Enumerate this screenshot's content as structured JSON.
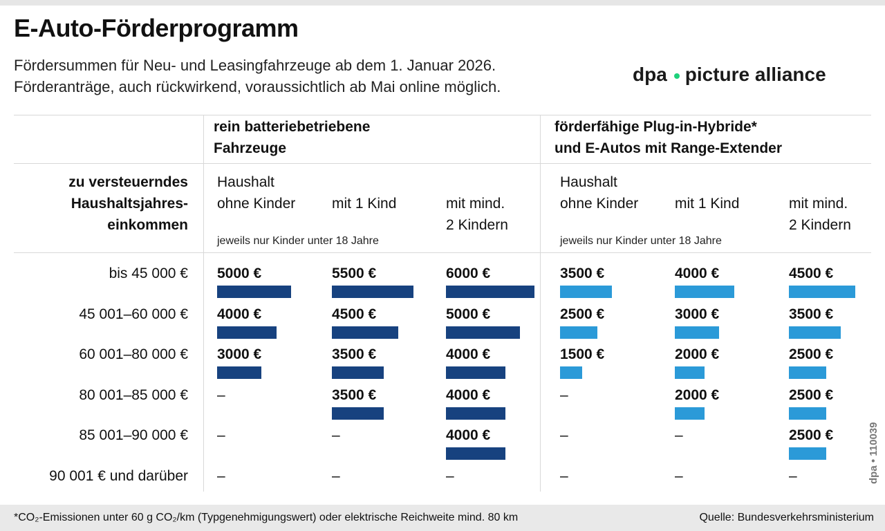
{
  "title": "E-Auto-Förderprogramm",
  "subtitle": [
    "Fördersummen für Neu- und Leasingfahrzeuge ab dem 1. Januar 2026.",
    "Förderanträge, auch rückwirkend, voraussichtlich ab Mai online möglich."
  ],
  "row_header": "zu versteuerndes\nHaushaltsjahres-\neinkommen",
  "groups": [
    {
      "label": "rein batteriebetriebene\nFahrzeuge",
      "note": "jeweils nur Kinder unter 18 Jahre"
    },
    {
      "label": "förderfähige Plug-in-Hybride*\nund E-Autos mit Range-Extender",
      "note": "jeweils nur Kinder unter 18 Jahre"
    }
  ],
  "col_headers": [
    "Haushalt\nohne Kinder",
    "\nmit 1 Kind",
    "\nmit mind.\n2 Kindern"
  ],
  "colors": {
    "battery": "#17427f",
    "hybrid": "#2b9ad8"
  },
  "chart_data": {
    "type": "table",
    "unit": "€",
    "rows": [
      "bis 45 000 €",
      "45 001–60 000 €",
      "60 001–80 000 €",
      "80 001–85 000 €",
      "85 001–90 000 €",
      "90 001 € und darüber"
    ],
    "series": [
      {
        "name": "rein batteriebetriebene Fahrzeuge – Haushalt ohne Kinder",
        "values": [
          5000,
          4000,
          3000,
          null,
          null,
          null
        ]
      },
      {
        "name": "rein batteriebetriebene Fahrzeuge – mit 1 Kind",
        "values": [
          5500,
          4500,
          3500,
          3500,
          null,
          null
        ]
      },
      {
        "name": "rein batteriebetriebene Fahrzeuge – mit mind. 2 Kindern",
        "values": [
          6000,
          5000,
          4000,
          4000,
          4000,
          null
        ]
      },
      {
        "name": "förderfähige Plug-in-Hybride* und E-Autos mit Range-Extender – Haushalt ohne Kinder",
        "values": [
          3500,
          2500,
          1500,
          null,
          null,
          null
        ]
      },
      {
        "name": "förderfähige Plug-in-Hybride* und E-Autos mit Range-Extender – mit 1 Kind",
        "values": [
          4000,
          3000,
          2000,
          2000,
          null,
          null
        ]
      },
      {
        "name": "förderfähige Plug-in-Hybride* und E-Autos mit Range-Extender – mit mind. 2 Kindern",
        "values": [
          4500,
          3500,
          2500,
          2500,
          2500,
          null
        ]
      }
    ],
    "empty_label": "–"
  },
  "footnote": "*CO₂-Emissionen unter 60 g CO₂/km (Typgenehmigungswert) oder elektrische Reichweite mind. 80 km",
  "source": "Quelle: Bundesverkehrsministerium",
  "credit": "dpa • 110039",
  "watermark": "dpa picture alliance"
}
